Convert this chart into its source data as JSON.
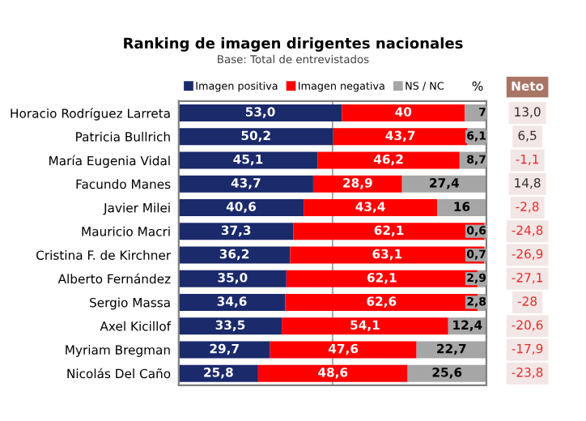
{
  "chart_data": {
    "type": "bar",
    "orientation": "horizontal",
    "stacked": true,
    "title": "Ranking de imagen dirigentes nacionales",
    "subtitle": "Base: Total de entrevistados",
    "categories": [
      "Horacio Rodríguez Larreta",
      "Patricia Bullrich",
      "María Eugenia Vidal",
      "Facundo Manes",
      "Javier Milei",
      "Mauricio Macri",
      "Cristina F. de Kirchner",
      "Alberto Fernández",
      "Sergio Massa",
      "Axel Kicillof",
      "Myriam Bregman",
      "Nicolás Del Caño"
    ],
    "series": [
      {
        "name": "Imagen positiva",
        "color": "#1b2a6b",
        "values": [
          53.0,
          50.2,
          45.1,
          43.7,
          40.6,
          37.3,
          36.2,
          35.0,
          34.6,
          33.5,
          29.7,
          25.8
        ],
        "value_labels": [
          "53,0",
          "50,2",
          "45,1",
          "43,7",
          "40,6",
          "37,3",
          "36,2",
          "35,0",
          "34,6",
          "33,5",
          "29,7",
          "25,8"
        ]
      },
      {
        "name": "Imagen negativa",
        "color": "#ff0000",
        "values": [
          40,
          43.7,
          46.2,
          28.9,
          43.4,
          62.1,
          63.1,
          62.1,
          62.6,
          54.1,
          47.6,
          48.6
        ],
        "value_labels": [
          "40",
          "43,7",
          "46,2",
          "28,9",
          "43,4",
          "62,1",
          "63,1",
          "62,1",
          "62,6",
          "54,1",
          "47,6",
          "48,6"
        ]
      },
      {
        "name": "NS / NC",
        "color": "#a6a6a6",
        "values": [
          7,
          6.1,
          8.7,
          27.4,
          16,
          0.6,
          0.7,
          2.9,
          2.8,
          12.4,
          22.7,
          25.6
        ],
        "value_labels": [
          "7",
          "6,1",
          "8,7",
          "27,4",
          "16",
          "0,6",
          "0,7",
          "2,9",
          "2,8",
          "12,4",
          "22,7",
          "25,6"
        ]
      }
    ],
    "xlim": [
      0,
      100
    ],
    "tick_labels": "y",
    "legend": "top",
    "ref_lines": [
      {
        "axis": "x",
        "value": 50,
        "color": "#a6a6a6"
      }
    ],
    "annotations": [
      "%",
      "Neto",
      "13,0",
      "6,5",
      "-1,1",
      "14,8",
      "-2,8",
      "-24,8",
      "-26,9",
      "-27,1",
      "-28",
      "-20,6",
      "-17,9",
      "-23,8"
    ]
  }
}
